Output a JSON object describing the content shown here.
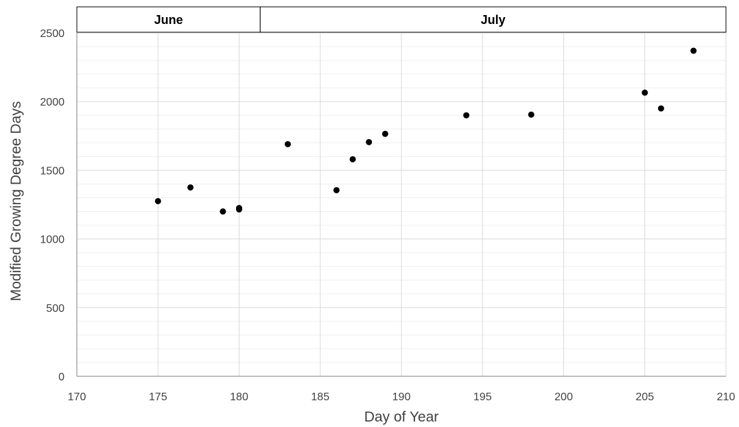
{
  "chart_data": {
    "type": "scatter",
    "xlabel": "Day of Year",
    "ylabel": "Modified Growing Degree Days",
    "xlim": [
      170,
      210
    ],
    "ylim": [
      0,
      2500
    ],
    "x_ticks": [
      170,
      175,
      180,
      185,
      190,
      195,
      200,
      205,
      210
    ],
    "y_ticks": [
      0,
      500,
      1000,
      1500,
      2000,
      2500
    ],
    "grid": true,
    "legend": "none",
    "marker_color": "#000000",
    "month_bands": [
      {
        "label": "June",
        "x_start": 170,
        "x_end": 181.3
      },
      {
        "label": "July",
        "x_start": 181.3,
        "x_end": 210
      }
    ],
    "points": [
      {
        "x": 175,
        "y": 1275
      },
      {
        "x": 177,
        "y": 1375
      },
      {
        "x": 179,
        "y": 1200
      },
      {
        "x": 180,
        "y": 1225
      },
      {
        "x": 180,
        "y": 1215
      },
      {
        "x": 183,
        "y": 1690
      },
      {
        "x": 186,
        "y": 1355
      },
      {
        "x": 187,
        "y": 1580
      },
      {
        "x": 188,
        "y": 1705
      },
      {
        "x": 189,
        "y": 1765
      },
      {
        "x": 194,
        "y": 1900
      },
      {
        "x": 198,
        "y": 1905
      },
      {
        "x": 205,
        "y": 2065
      },
      {
        "x": 206,
        "y": 1950
      },
      {
        "x": 208,
        "y": 2370
      }
    ]
  }
}
